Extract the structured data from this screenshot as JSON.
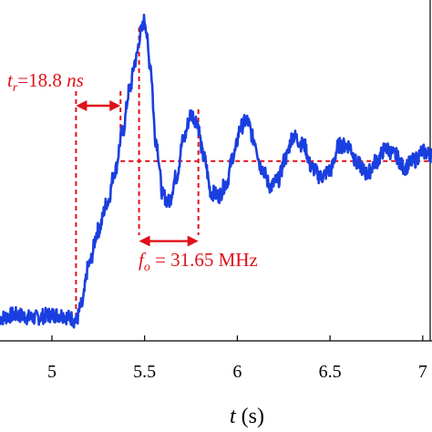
{
  "chart_data": {
    "type": "line",
    "xlabel_var": "t",
    "xlabel_unit": " (s)",
    "xlim": [
      4.72,
      7.05
    ],
    "ylim": [
      0,
      1.0
    ],
    "grid": false,
    "x_ticks": [
      {
        "value": 5,
        "label": "5"
      },
      {
        "value": 5.5,
        "label": "5.5"
      },
      {
        "value": 6,
        "label": "6"
      },
      {
        "value": 6.5,
        "label": "6.5"
      },
      {
        "value": 7,
        "label": "7"
      }
    ],
    "series": [
      {
        "color": "#1a3fe0",
        "x": [
          4.72,
          4.8,
          4.9,
          5.0,
          5.05,
          5.1,
          5.13,
          5.16,
          5.2,
          5.25,
          5.3,
          5.34,
          5.38,
          5.42,
          5.45,
          5.48,
          5.5,
          5.53,
          5.56,
          5.6,
          5.63,
          5.67,
          5.71,
          5.75,
          5.78,
          5.82,
          5.86,
          5.9,
          5.94,
          5.98,
          6.02,
          6.05,
          6.09,
          6.13,
          6.18,
          6.22,
          6.26,
          6.3,
          6.36,
          6.4,
          6.45,
          6.5,
          6.55,
          6.6,
          6.65,
          6.7,
          6.75,
          6.8,
          6.85,
          6.9,
          6.95,
          7.0,
          7.05
        ],
        "y": [
          0.05,
          0.06,
          0.05,
          0.06,
          0.06,
          0.05,
          0.04,
          0.09,
          0.22,
          0.33,
          0.42,
          0.52,
          0.64,
          0.78,
          0.87,
          0.96,
          1.0,
          0.86,
          0.62,
          0.44,
          0.42,
          0.5,
          0.62,
          0.7,
          0.68,
          0.56,
          0.45,
          0.44,
          0.48,
          0.57,
          0.66,
          0.68,
          0.62,
          0.53,
          0.47,
          0.49,
          0.56,
          0.63,
          0.6,
          0.53,
          0.5,
          0.52,
          0.6,
          0.6,
          0.54,
          0.51,
          0.55,
          0.59,
          0.57,
          0.53,
          0.55,
          0.58,
          0.57
        ]
      }
    ],
    "annotations": {
      "tr_var": "t",
      "tr_sub": "r",
      "tr_text": "=18.8 ",
      "tr_unit": "ns",
      "fo_var": "f",
      "fo_sub": "o",
      "fo_text": " = 31.65 MHz",
      "color": "#e0101a",
      "rise_start_x": 5.13,
      "rise_end_x": 5.37,
      "steady_y": 0.55,
      "peak1_x": 5.47,
      "peak2_x": 5.79,
      "fo_arrow_y": 0.295
    }
  }
}
